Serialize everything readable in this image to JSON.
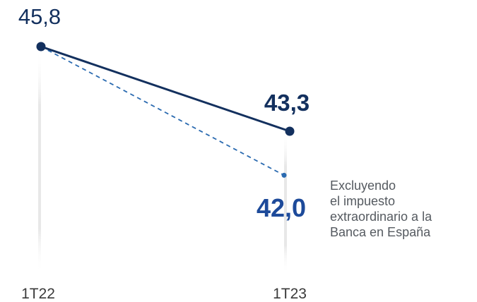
{
  "chart_data": {
    "type": "line",
    "x": [
      "1T22",
      "1T23"
    ],
    "series": [
      {
        "name": "",
        "values": [
          45.8,
          43.3
        ]
      },
      {
        "name": "Excluyendo el impuesto extraordinario a la Banca en España",
        "values": [
          45.8,
          42.0
        ]
      }
    ],
    "data_labels": [
      "45,8",
      "43,3",
      "42,0"
    ],
    "annotation_lines": [
      "Excluyendo",
      "el impuesto",
      "extraordinario a la",
      "Banca en España"
    ],
    "ylim": [
      40,
      47
    ],
    "grid": false,
    "colors": {
      "main_line": "#13305e",
      "dashed_line": "#2a6ab0",
      "label_dark": "#13305e",
      "label_blue": "#1d4a9a",
      "guide": "#e6e6e6",
      "tick_text": "#3a3a3a"
    }
  }
}
